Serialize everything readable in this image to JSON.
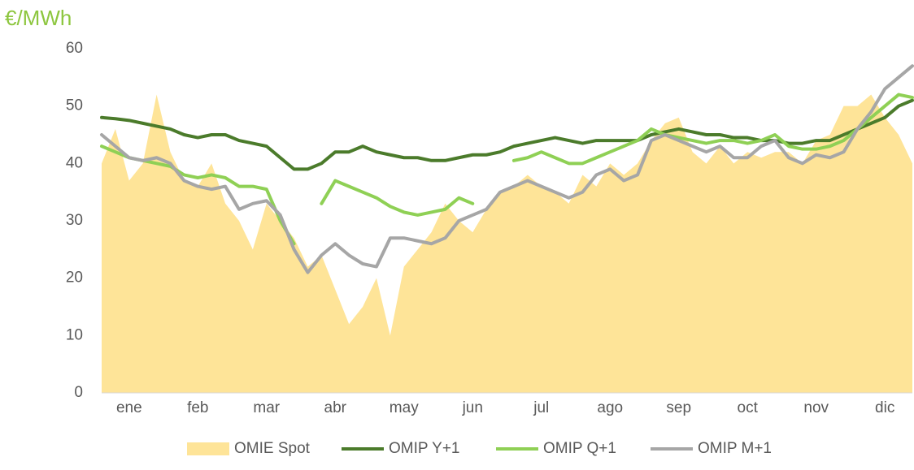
{
  "chart_data": {
    "type": "line",
    "title": "€/MWh",
    "categories": [
      null,
      null,
      "ene",
      null,
      null,
      null,
      null,
      "feb",
      null,
      null,
      null,
      null,
      "mar",
      null,
      null,
      null,
      null,
      "abr",
      null,
      null,
      null,
      null,
      "may",
      null,
      null,
      null,
      null,
      "jun",
      null,
      null,
      null,
      null,
      "jul",
      null,
      null,
      null,
      null,
      "ago",
      null,
      null,
      null,
      null,
      "sep",
      null,
      null,
      null,
      null,
      "oct",
      null,
      null,
      null,
      null,
      "nov",
      null,
      null,
      null,
      null,
      "dic",
      null,
      null
    ],
    "ylim": [
      0,
      60
    ],
    "yticks": [
      0,
      10,
      20,
      30,
      40,
      50,
      60
    ],
    "grid": false,
    "legend": "bottom",
    "series": [
      {
        "name": "OMIE Spot",
        "type": "area",
        "color": "#fee498",
        "values": [
          40,
          46,
          37,
          40,
          52,
          42,
          37,
          36,
          40,
          33,
          30,
          25,
          33,
          30,
          27,
          22,
          24,
          18,
          12,
          15,
          20,
          10,
          22,
          25,
          28,
          33,
          30,
          28,
          32,
          35,
          36,
          38,
          36,
          35,
          33,
          38,
          36,
          40,
          38,
          40,
          44,
          47,
          48,
          42,
          40,
          43,
          40,
          42,
          41,
          42,
          42,
          40,
          44,
          45,
          50,
          50,
          52,
          48,
          45,
          40
        ]
      },
      {
        "name": "OMIP Y+1",
        "type": "line",
        "color": "#4b7b2b",
        "values": [
          48,
          47.8,
          47.5,
          47,
          46.5,
          46,
          45,
          44.5,
          45,
          45,
          44,
          43.5,
          43,
          41,
          39,
          39,
          40,
          42,
          42,
          43,
          42,
          41.5,
          41,
          41,
          40.5,
          40.5,
          41,
          41.5,
          41.5,
          42,
          43,
          43.5,
          44,
          44.5,
          44,
          43.5,
          44,
          44,
          44,
          44,
          45,
          45.5,
          46,
          45.5,
          45,
          45,
          44.5,
          44.5,
          44,
          44,
          43.5,
          43.5,
          44,
          44,
          45,
          46,
          47,
          48,
          50,
          51
        ]
      },
      {
        "name": "OMIP Q+1",
        "type": "line",
        "color": "#8fd055",
        "values": [
          43,
          42,
          41,
          40.5,
          40,
          39.5,
          38,
          37.5,
          38,
          37.5,
          36,
          36,
          35.5,
          30,
          26,
          null,
          33,
          37,
          36,
          35,
          34,
          32.5,
          31.5,
          31,
          31.5,
          32,
          34,
          33,
          null,
          null,
          40.5,
          41,
          42,
          41,
          40,
          40,
          41,
          42,
          43,
          44,
          46,
          45,
          44.5,
          44,
          43.5,
          44,
          44,
          43.5,
          44,
          45,
          43,
          42.5,
          42.5,
          43,
          44,
          46,
          48,
          50,
          52,
          51.5
        ]
      },
      {
        "name": "OMIP M+1",
        "type": "line",
        "color": "#a6a6a6",
        "values": [
          45,
          43,
          41,
          40.5,
          41,
          40,
          37,
          36,
          35.5,
          36,
          32,
          33,
          33.5,
          31,
          25,
          21,
          24,
          26,
          24,
          22.5,
          22,
          27,
          27,
          26.5,
          26,
          27,
          30,
          31,
          32,
          35,
          36,
          37,
          36,
          35,
          34,
          35,
          38,
          39,
          37,
          38,
          44,
          45,
          44,
          43,
          42,
          43,
          41,
          41,
          43,
          44,
          41,
          40,
          41.5,
          41,
          42,
          46,
          49,
          53,
          55,
          57
        ]
      }
    ]
  }
}
